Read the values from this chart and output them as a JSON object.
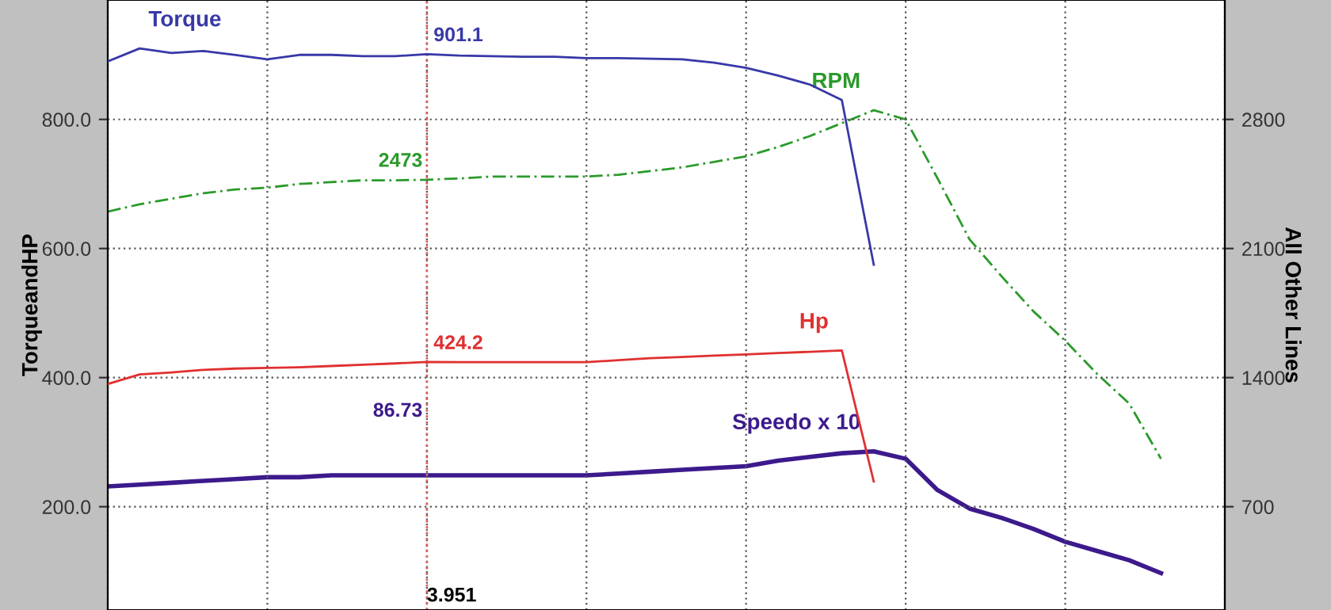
{
  "chart_data": {
    "type": "line",
    "ylabel": "TorqueandHP",
    "y2label": "All Other Lines",
    "categories": [
      null,
      null,
      null,
      null,
      null,
      null,
      null,
      null,
      null,
      null,
      null,
      null,
      null,
      null,
      null,
      null,
      null,
      null,
      null,
      null,
      null,
      null,
      null,
      null,
      null,
      null,
      null,
      null,
      null,
      null,
      null,
      null,
      null,
      null,
      null,
      null
    ],
    "series": [
      {
        "name": "Torque",
        "color": "#3838a8",
        "line_style": "solid",
        "values": [
          890,
          910,
          903,
          906,
          900,
          893,
          900,
          900,
          898,
          898,
          901.1,
          899,
          898,
          897,
          897,
          895,
          895,
          894,
          893,
          888,
          880,
          868,
          854,
          830,
          575,
          null,
          null,
          null,
          null,
          null,
          null,
          null,
          null,
          null,
          null,
          null
        ],
        "value_labels": [
          null,
          null,
          null,
          null,
          null,
          null,
          null,
          null,
          null,
          null,
          "901.1",
          null,
          null,
          null,
          null,
          null,
          null,
          null,
          null,
          null,
          null,
          null,
          null,
          null,
          null,
          null,
          null,
          null,
          null,
          null,
          null,
          null,
          null,
          null,
          null,
          null
        ]
      },
      {
        "name": "RPM",
        "color": "#2a9a2a",
        "axis": "y2",
        "line_style": "dashed",
        "values": [
          2300,
          2340,
          2370,
          2400,
          2420,
          2430,
          2450,
          2460,
          2470,
          2470,
          2473,
          2480,
          2490,
          2490,
          2490,
          2490,
          2500,
          2520,
          2540,
          2570,
          2600,
          2650,
          2710,
          2780,
          2850,
          2800,
          2480,
          2150,
          1950,
          1760,
          1600,
          1420,
          1260,
          960,
          null,
          null
        ],
        "value_labels": [
          null,
          null,
          null,
          null,
          null,
          null,
          null,
          null,
          null,
          null,
          "2473",
          null,
          null,
          null,
          null,
          null,
          null,
          null,
          null,
          null,
          null,
          null,
          null,
          null,
          null,
          null,
          null,
          null,
          null,
          null,
          null,
          null,
          null,
          null,
          null,
          null
        ]
      },
      {
        "name": "Hp",
        "color": "#e03030",
        "line_style": "solid",
        "values": [
          390,
          405,
          408,
          412,
          414,
          415,
          416,
          418,
          420,
          422,
          424.2,
          424,
          424,
          424,
          424,
          424,
          427,
          430,
          432,
          434,
          436,
          438,
          440,
          442,
          239,
          null,
          null,
          null,
          null,
          null,
          null,
          null,
          null,
          null,
          null,
          null
        ],
        "value_labels": [
          null,
          null,
          null,
          null,
          null,
          null,
          null,
          null,
          null,
          null,
          "424.2",
          null,
          null,
          null,
          null,
          null,
          null,
          null,
          null,
          null,
          null,
          null,
          null,
          null,
          null,
          null,
          null,
          null,
          null,
          null,
          null,
          null,
          null,
          null,
          null,
          null
        ]
      },
      {
        "name": "Speedo x 10",
        "color": "#3c1a8c",
        "axis": "y2",
        "line_style": "solid",
        "values": [
          810,
          820,
          830,
          840,
          850,
          860,
          860,
          870,
          870,
          870,
          870,
          870,
          870,
          870,
          870,
          870,
          880,
          890,
          900,
          910,
          920,
          950,
          970,
          990,
          1000,
          960,
          790,
          690,
          640,
          580,
          510,
          460,
          410,
          340,
          null,
          null
        ]
      }
    ],
    "ylim": [
      40,
      985
    ],
    "yticks": [
      {
        "value": 200,
        "label": "200.0"
      },
      {
        "value": 400,
        "label": "400.0"
      },
      {
        "value": 600,
        "label": "600.0"
      },
      {
        "value": 800,
        "label": "800.0"
      }
    ],
    "y2lim": [
      140,
      3447.5
    ],
    "y2ticks": [
      700,
      1400,
      2100,
      2800
    ],
    "annotations": [
      "86.73",
      "3.951"
    ],
    "grid": true,
    "legend": false,
    "tick_labels": "y",
    "marker": "none"
  }
}
